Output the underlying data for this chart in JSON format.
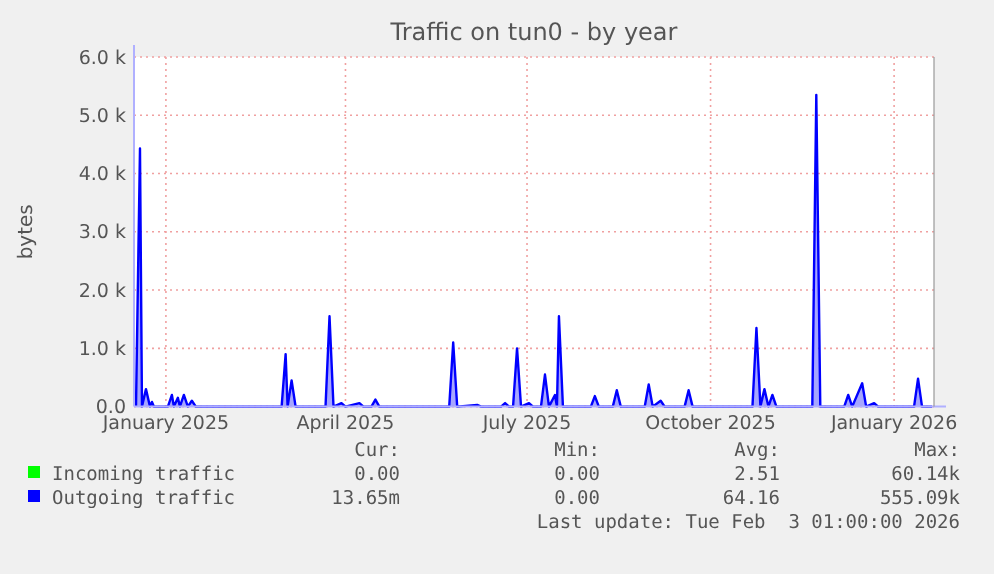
{
  "chart_data": {
    "type": "area",
    "title": "Traffic on tun0 - by year",
    "ylabel": "bytes",
    "xlim": [
      "2024-12-16",
      "2026-01-21"
    ],
    "ylim": [
      0,
      6000
    ],
    "xticks": [
      {
        "value": "2025-01-01",
        "label": "January 2025"
      },
      {
        "value": "2025-04-01",
        "label": "April 2025"
      },
      {
        "value": "2025-07-01",
        "label": "July 2025"
      },
      {
        "value": "2025-10-01",
        "label": "October 2025"
      },
      {
        "value": "2026-01-01",
        "label": "January 2026"
      }
    ],
    "yticks": [
      {
        "value": 0,
        "label": "0.0"
      },
      {
        "value": 1000,
        "label": "1.0 k"
      },
      {
        "value": 2000,
        "label": "2.0 k"
      },
      {
        "value": 3000,
        "label": "3.0 k"
      },
      {
        "value": 4000,
        "label": "4.0 k"
      },
      {
        "value": 5000,
        "label": "5.0 k"
      },
      {
        "value": 6000,
        "label": "6.0 k"
      }
    ],
    "grid": true,
    "legend": "bottom left",
    "series": [
      {
        "name": "Outgoing traffic",
        "color": "#0000ff",
        "x": [
          "2024-12-17",
          "2024-12-19",
          "2024-12-20",
          "2024-12-22",
          "2024-12-24",
          "2024-12-25",
          "2024-12-26",
          "2025-01-02",
          "2025-01-04",
          "2025-01-05",
          "2025-01-07",
          "2025-01-08",
          "2025-01-10",
          "2025-01-12",
          "2025-01-14",
          "2025-01-16",
          "2025-02-28",
          "2025-03-02",
          "2025-03-03",
          "2025-03-05",
          "2025-03-07",
          "2025-03-22",
          "2025-03-24",
          "2025-03-26",
          "2025-03-30",
          "2025-04-01",
          "2025-04-08",
          "2025-04-10",
          "2025-04-14",
          "2025-04-16",
          "2025-04-18",
          "2025-05-23",
          "2025-05-25",
          "2025-05-27",
          "2025-06-06",
          "2025-06-08",
          "2025-06-18",
          "2025-06-20",
          "2025-06-22",
          "2025-06-24",
          "2025-06-26",
          "2025-06-28",
          "2025-07-02",
          "2025-07-04",
          "2025-07-08",
          "2025-07-10",
          "2025-07-12",
          "2025-07-15",
          "2025-07-16",
          "2025-07-17",
          "2025-07-19",
          "2025-08-02",
          "2025-08-04",
          "2025-08-06",
          "2025-08-13",
          "2025-08-15",
          "2025-08-17",
          "2025-08-29",
          "2025-08-31",
          "2025-09-02",
          "2025-09-06",
          "2025-09-08",
          "2025-09-18",
          "2025-09-20",
          "2025-09-22",
          "2025-10-22",
          "2025-10-24",
          "2025-10-26",
          "2025-10-28",
          "2025-10-30",
          "2025-11-01",
          "2025-11-03",
          "2025-11-21",
          "2025-11-23",
          "2025-11-25",
          "2025-12-07",
          "2025-12-09",
          "2025-12-11",
          "2025-12-16",
          "2025-12-18",
          "2025-12-22",
          "2025-12-24",
          "2026-01-11",
          "2026-01-13",
          "2026-01-15",
          "2026-01-20"
        ],
        "values": [
          0,
          4430,
          0,
          300,
          0,
          80,
          0,
          0,
          200,
          0,
          150,
          0,
          200,
          0,
          100,
          0,
          0,
          900,
          0,
          450,
          0,
          0,
          1550,
          0,
          60,
          0,
          60,
          0,
          0,
          120,
          0,
          0,
          1100,
          0,
          30,
          0,
          0,
          60,
          0,
          0,
          1000,
          0,
          60,
          0,
          0,
          550,
          0,
          200,
          0,
          1550,
          0,
          0,
          180,
          0,
          0,
          280,
          0,
          0,
          380,
          0,
          100,
          0,
          0,
          280,
          0,
          0,
          1350,
          0,
          300,
          0,
          200,
          0,
          0,
          5350,
          0,
          0,
          200,
          0,
          400,
          0,
          60,
          0,
          0,
          480,
          0,
          0
        ]
      },
      {
        "name": "Incoming traffic",
        "color": "#00ff00"
      }
    ],
    "annotations": [
      "Cur:",
      "Min:",
      "Avg:",
      "Max:",
      "0.00",
      "0.00",
      "2.51",
      "60.14k",
      "13.65m",
      "0.00",
      "64.16",
      "555.09k",
      "Last update: Tue Feb  3 01:00:00 2026"
    ]
  }
}
